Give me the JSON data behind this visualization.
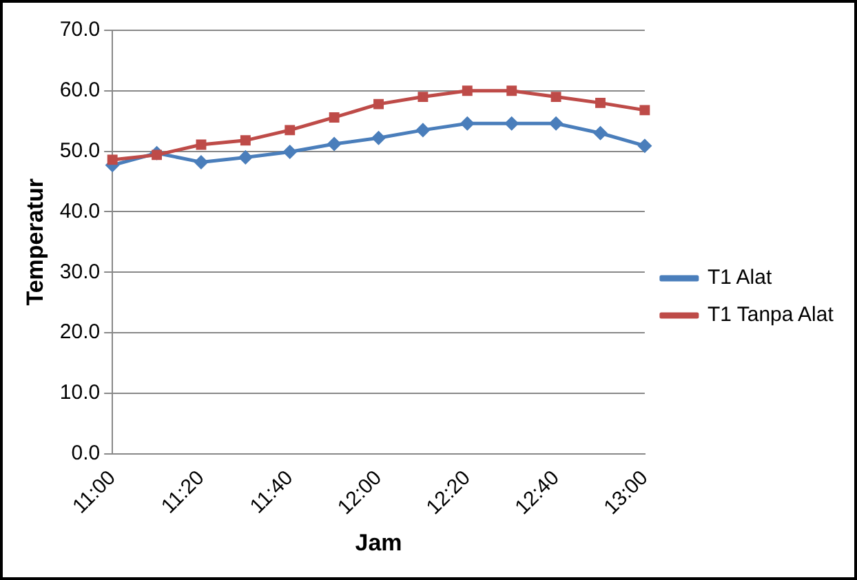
{
  "chart_data": {
    "type": "line",
    "xlabel": "Jam",
    "ylabel": "Temperatur",
    "categories": [
      "11:00",
      null,
      "11:20",
      null,
      "11:40",
      null,
      "12:00",
      null,
      "12:20",
      null,
      "12:40",
      null,
      "13:00"
    ],
    "series": [
      {
        "name": "T1 Alat",
        "color": "#4a7ebb",
        "marker": "diamond",
        "values": [
          47.7,
          49.7,
          48.2,
          49.0,
          49.9,
          51.2,
          52.2,
          53.5,
          54.6,
          54.6,
          54.6,
          53.0,
          50.9
        ]
      },
      {
        "name": "T1 Tanpa Alat",
        "color": "#be4b48",
        "marker": "square",
        "values": [
          48.6,
          49.4,
          51.1,
          51.8,
          53.5,
          55.6,
          57.8,
          59.0,
          60.0,
          60.0,
          59.0,
          58.0,
          56.8
        ]
      }
    ],
    "ylim": [
      0,
      70
    ],
    "yticks": [
      {
        "value": 0,
        "label": "0.0"
      },
      {
        "value": 10,
        "label": "10.0"
      },
      {
        "value": 20,
        "label": "20.0"
      },
      {
        "value": 30,
        "label": "30.0"
      },
      {
        "value": 40,
        "label": "40.0"
      },
      {
        "value": 50,
        "label": "50.0"
      },
      {
        "value": 60,
        "label": "60.0"
      },
      {
        "value": 70,
        "label": "70.0"
      }
    ],
    "grid": "y",
    "legend": "right",
    "line_style": "solid"
  }
}
